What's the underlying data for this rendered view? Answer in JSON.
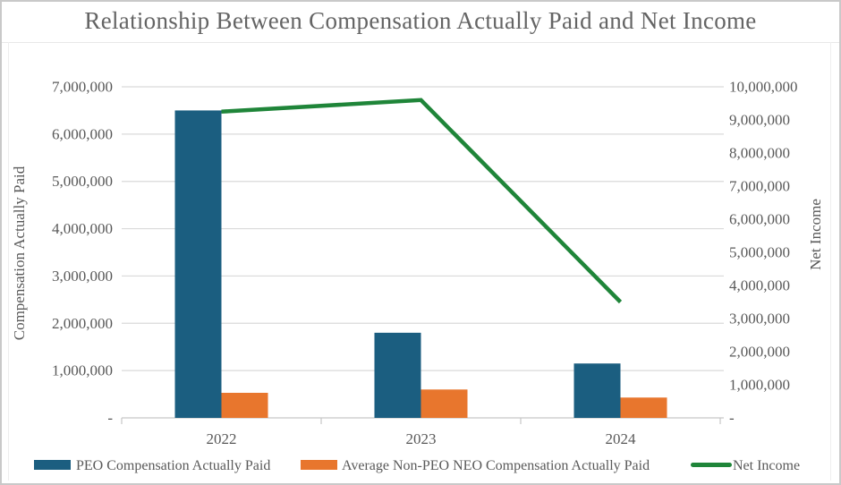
{
  "chart_data": {
    "type": "bar",
    "subtype": "bar-line-combo",
    "title": "Relationship Between Compensation Actually Paid and Net Income",
    "categories": [
      "2022",
      "2023",
      "2024"
    ],
    "series": [
      {
        "name": "PEO Compensation Actually Paid",
        "kind": "bar",
        "axis": "left",
        "color": "#1B5E80",
        "values": [
          6500000,
          1800000,
          1150000
        ]
      },
      {
        "name": "Average Non-PEO NEO Compensation Actually Paid",
        "kind": "bar",
        "axis": "left",
        "color": "#E8762D",
        "values": [
          530000,
          600000,
          430000
        ]
      },
      {
        "name": "Net Income",
        "kind": "line",
        "axis": "right",
        "color": "#1F8539",
        "values": [
          9250000,
          9600000,
          3500000
        ]
      }
    ],
    "left_axis": {
      "title": "Compensation Actually Paid",
      "min": 0,
      "max": 7000000,
      "tick_step": 1000000,
      "tick_labels": [
        "-",
        "1,000,000",
        "2,000,000",
        "3,000,000",
        "4,000,000",
        "5,000,000",
        "6,000,000",
        "7,000,000"
      ]
    },
    "right_axis": {
      "title": "Net Income",
      "min": 0,
      "max": 10000000,
      "tick_step": 1000000,
      "tick_labels": [
        "-",
        "1,000,000",
        "2,000,000",
        "3,000,000",
        "4,000,000",
        "5,000,000",
        "6,000,000",
        "7,000,000",
        "8,000,000",
        "9,000,000",
        "10,000,000"
      ]
    },
    "legend": {
      "position": "bottom",
      "entries": [
        "PEO Compensation Actually Paid",
        "Average Non-PEO NEO Compensation Actually Paid",
        "Net Income"
      ]
    },
    "grid": true,
    "colors": {
      "gridline": "#dadada",
      "axis_line": "#c6c6c6",
      "tick_text": "#595959",
      "title_text": "#646464"
    }
  }
}
